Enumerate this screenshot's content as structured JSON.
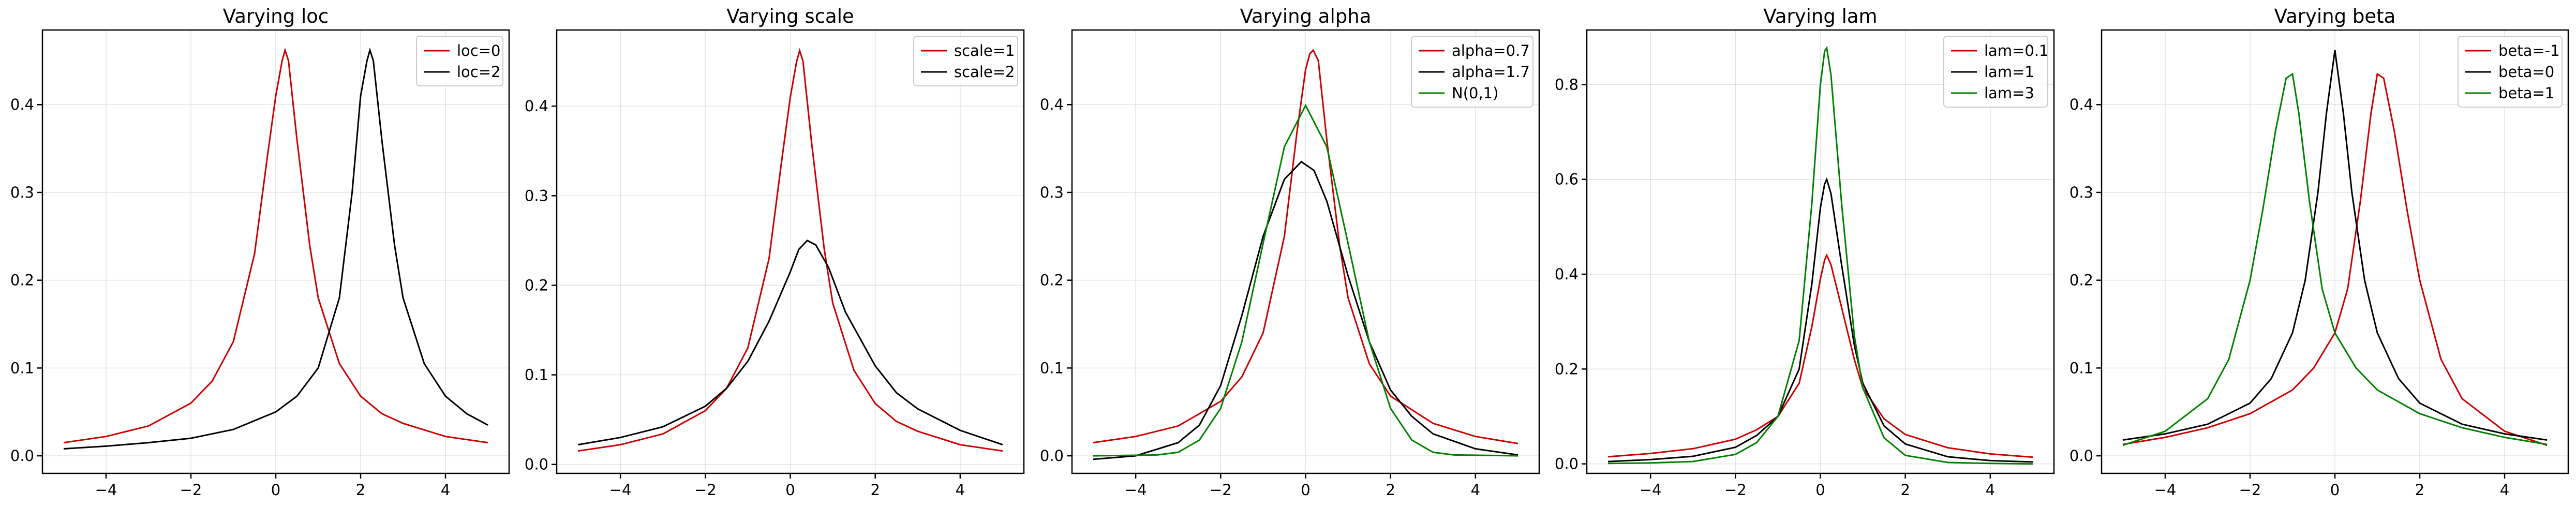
{
  "chart_data": [
    {
      "type": "line",
      "title": "Varying loc",
      "xlabel": "",
      "ylabel": "",
      "xlim": [
        -5.5,
        5.5
      ],
      "ylim": [
        -0.02,
        0.485
      ],
      "xticks": [
        -4,
        -2,
        0,
        2,
        4
      ],
      "yticks": [
        0.0,
        0.1,
        0.2,
        0.3,
        0.4
      ],
      "grid": true,
      "legend": "top-right",
      "series": [
        {
          "name": "loc=0",
          "color": "#cc0000",
          "x": [
            -5,
            -4,
            -3,
            -2,
            -1.5,
            -1,
            -0.5,
            -0.2,
            0,
            0.15,
            0.22,
            0.3,
            0.5,
            0.8,
            1,
            1.5,
            2,
            2.5,
            3,
            4,
            5
          ],
          "y": [
            0.015,
            0.022,
            0.034,
            0.06,
            0.085,
            0.13,
            0.23,
            0.34,
            0.41,
            0.45,
            0.462,
            0.45,
            0.36,
            0.24,
            0.18,
            0.105,
            0.068,
            0.048,
            0.037,
            0.022,
            0.015
          ]
        },
        {
          "name": "loc=2",
          "color": "#000000",
          "x": [
            -5,
            -4,
            -3,
            -2,
            -1,
            0,
            0.5,
            1,
            1.5,
            1.8,
            2,
            2.15,
            2.22,
            2.3,
            2.5,
            2.8,
            3,
            3.5,
            4,
            4.5,
            5
          ],
          "y": [
            0.008,
            0.011,
            0.015,
            0.02,
            0.03,
            0.05,
            0.068,
            0.1,
            0.18,
            0.3,
            0.41,
            0.45,
            0.462,
            0.45,
            0.36,
            0.24,
            0.18,
            0.105,
            0.068,
            0.048,
            0.035
          ]
        }
      ]
    },
    {
      "type": "line",
      "title": "Varying scale",
      "xlabel": "",
      "ylabel": "",
      "xlim": [
        -5.5,
        5.5
      ],
      "ylim": [
        -0.01,
        0.485
      ],
      "xticks": [
        -4,
        -2,
        0,
        2,
        4
      ],
      "yticks": [
        0.0,
        0.1,
        0.2,
        0.3,
        0.4
      ],
      "grid": true,
      "legend": "top-right",
      "series": [
        {
          "name": "scale=1",
          "color": "#cc0000",
          "x": [
            -5,
            -4,
            -3,
            -2,
            -1.5,
            -1,
            -0.5,
            -0.2,
            0,
            0.15,
            0.22,
            0.3,
            0.5,
            0.8,
            1,
            1.5,
            2,
            2.5,
            3,
            4,
            5
          ],
          "y": [
            0.015,
            0.022,
            0.034,
            0.06,
            0.085,
            0.13,
            0.23,
            0.34,
            0.41,
            0.45,
            0.462,
            0.45,
            0.36,
            0.24,
            0.18,
            0.105,
            0.068,
            0.048,
            0.037,
            0.022,
            0.015
          ]
        },
        {
          "name": "scale=2",
          "color": "#000000",
          "x": [
            -5,
            -4,
            -3,
            -2,
            -1.5,
            -1,
            -0.5,
            0,
            0.2,
            0.4,
            0.6,
            0.9,
            1.3,
            2,
            2.5,
            3,
            4,
            5
          ],
          "y": [
            0.022,
            0.03,
            0.042,
            0.065,
            0.085,
            0.115,
            0.16,
            0.215,
            0.24,
            0.25,
            0.245,
            0.22,
            0.17,
            0.11,
            0.08,
            0.062,
            0.038,
            0.022
          ]
        }
      ]
    },
    {
      "type": "line",
      "title": "Varying alpha",
      "xlabel": "",
      "ylabel": "",
      "xlim": [
        -5.5,
        5.5
      ],
      "ylim": [
        -0.02,
        0.485
      ],
      "xticks": [
        -4,
        -2,
        0,
        2,
        4
      ],
      "yticks": [
        0.0,
        0.1,
        0.2,
        0.3,
        0.4
      ],
      "grid": true,
      "legend": "top-right",
      "series": [
        {
          "name": "alpha=0.7",
          "color": "#cc0000",
          "x": [
            -5,
            -4,
            -3,
            -2,
            -1.5,
            -1,
            -0.5,
            -0.2,
            0,
            0.1,
            0.18,
            0.3,
            0.5,
            0.8,
            1,
            1.5,
            2,
            3,
            4,
            5
          ],
          "y": [
            0.015,
            0.022,
            0.034,
            0.062,
            0.09,
            0.14,
            0.25,
            0.37,
            0.44,
            0.458,
            0.462,
            0.45,
            0.36,
            0.24,
            0.18,
            0.105,
            0.068,
            0.037,
            0.022,
            0.014
          ]
        },
        {
          "name": "alpha=1.7",
          "color": "#000000",
          "x": [
            -5,
            -4,
            -3,
            -2.5,
            -2,
            -1.5,
            -1,
            -0.5,
            -0.1,
            0.2,
            0.5,
            1,
            1.5,
            2,
            2.5,
            3,
            4,
            5
          ],
          "y": [
            -0.004,
            0.0,
            0.015,
            0.035,
            0.08,
            0.16,
            0.25,
            0.315,
            0.335,
            0.325,
            0.29,
            0.205,
            0.13,
            0.075,
            0.045,
            0.025,
            0.008,
            0.001
          ]
        },
        {
          "name": "N(0,1)",
          "color": "#008000",
          "x": [
            -5,
            -3.5,
            -3,
            -2.5,
            -2,
            -1.5,
            -1,
            -0.5,
            0,
            0.5,
            1,
            1.5,
            2,
            2.5,
            3,
            3.5,
            5
          ],
          "y": [
            0.0,
            0.001,
            0.004,
            0.018,
            0.054,
            0.13,
            0.242,
            0.352,
            0.399,
            0.352,
            0.242,
            0.13,
            0.054,
            0.018,
            0.004,
            0.001,
            0.0
          ]
        }
      ]
    },
    {
      "type": "line",
      "title": "Varying lam",
      "xlabel": "",
      "ylabel": "",
      "xlim": [
        -5.5,
        5.5
      ],
      "ylim": [
        -0.02,
        0.915
      ],
      "xticks": [
        -4,
        -2,
        0,
        2,
        4
      ],
      "yticks": [
        0.0,
        0.2,
        0.4,
        0.6,
        0.8
      ],
      "grid": true,
      "legend": "top-right",
      "series": [
        {
          "name": "lam=0.1",
          "color": "#cc0000",
          "x": [
            -5,
            -4,
            -3,
            -2,
            -1.5,
            -1,
            -0.5,
            -0.2,
            0,
            0.1,
            0.15,
            0.25,
            0.5,
            0.8,
            1,
            1.5,
            2,
            3,
            4,
            5
          ],
          "y": [
            0.015,
            0.022,
            0.032,
            0.052,
            0.072,
            0.1,
            0.17,
            0.29,
            0.39,
            0.43,
            0.44,
            0.42,
            0.33,
            0.22,
            0.16,
            0.095,
            0.062,
            0.034,
            0.021,
            0.014
          ]
        },
        {
          "name": "lam=1",
          "color": "#000000",
          "x": [
            -5,
            -4,
            -3,
            -2,
            -1.5,
            -1,
            -0.5,
            -0.2,
            0,
            0.1,
            0.15,
            0.25,
            0.5,
            0.8,
            1,
            1.5,
            2,
            3,
            4,
            5
          ],
          "y": [
            0.005,
            0.009,
            0.016,
            0.035,
            0.06,
            0.1,
            0.2,
            0.38,
            0.54,
            0.59,
            0.6,
            0.57,
            0.42,
            0.25,
            0.17,
            0.08,
            0.042,
            0.015,
            0.007,
            0.004
          ]
        },
        {
          "name": "lam=3",
          "color": "#008000",
          "x": [
            -5,
            -4,
            -3,
            -2,
            -1.5,
            -1,
            -0.5,
            -0.2,
            0,
            0.1,
            0.15,
            0.25,
            0.5,
            0.8,
            1,
            1.5,
            2,
            3,
            4,
            5
          ],
          "y": [
            0.001,
            0.002,
            0.005,
            0.02,
            0.045,
            0.1,
            0.26,
            0.55,
            0.8,
            0.87,
            0.877,
            0.82,
            0.55,
            0.27,
            0.16,
            0.055,
            0.018,
            0.003,
            0.001,
            0.0
          ]
        }
      ]
    },
    {
      "type": "line",
      "title": "Varying beta",
      "xlabel": "",
      "ylabel": "",
      "xlim": [
        -5.5,
        5.5
      ],
      "ylim": [
        -0.02,
        0.485
      ],
      "xticks": [
        -4,
        -2,
        0,
        2,
        4
      ],
      "yticks": [
        0.0,
        0.1,
        0.2,
        0.3,
        0.4
      ],
      "grid": true,
      "legend": "top-right",
      "series": [
        {
          "name": "beta=-1",
          "color": "#cc0000",
          "x": [
            -5,
            -4,
            -3,
            -2,
            -1,
            -0.5,
            0,
            0.3,
            0.6,
            0.85,
            1,
            1.15,
            1.4,
            1.7,
            2,
            2.5,
            3,
            4,
            5
          ],
          "y": [
            0.013,
            0.021,
            0.032,
            0.048,
            0.075,
            0.1,
            0.14,
            0.19,
            0.29,
            0.39,
            0.435,
            0.43,
            0.37,
            0.28,
            0.2,
            0.11,
            0.065,
            0.028,
            0.012
          ]
        },
        {
          "name": "beta=0",
          "color": "#000000",
          "x": [
            -5,
            -4,
            -3,
            -2,
            -1.5,
            -1,
            -0.7,
            -0.4,
            -0.2,
            0,
            0.2,
            0.4,
            0.7,
            1,
            1.5,
            2,
            3,
            4,
            5
          ],
          "y": [
            0.018,
            0.025,
            0.036,
            0.06,
            0.088,
            0.14,
            0.2,
            0.3,
            0.39,
            0.462,
            0.39,
            0.3,
            0.2,
            0.14,
            0.088,
            0.06,
            0.036,
            0.025,
            0.018
          ]
        },
        {
          "name": "beta=1",
          "color": "#008000",
          "x": [
            -5,
            -4,
            -3,
            -2.5,
            -2,
            -1.7,
            -1.4,
            -1.15,
            -1,
            -0.85,
            -0.6,
            -0.3,
            0,
            0.5,
            1,
            2,
            3,
            4,
            5
          ],
          "y": [
            0.012,
            0.028,
            0.065,
            0.11,
            0.2,
            0.28,
            0.37,
            0.43,
            0.435,
            0.39,
            0.29,
            0.19,
            0.14,
            0.1,
            0.075,
            0.048,
            0.032,
            0.021,
            0.013
          ]
        }
      ]
    }
  ]
}
